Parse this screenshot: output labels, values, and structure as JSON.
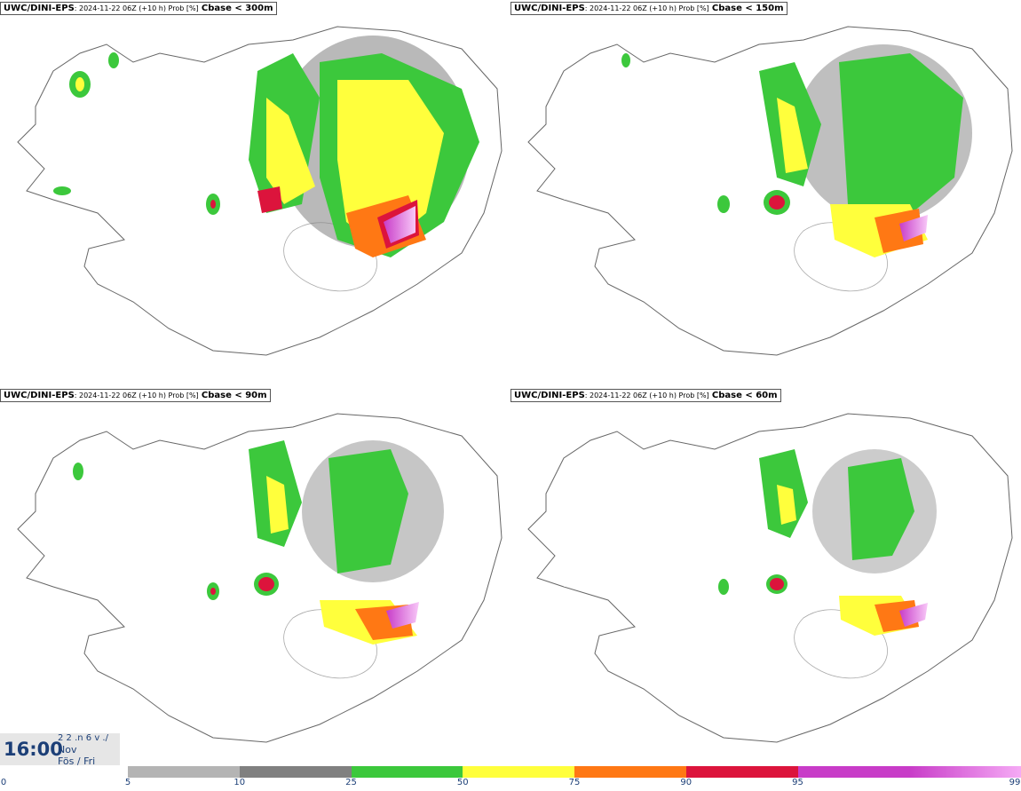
{
  "panels": [
    {
      "model": "UWC/DINI-EPS",
      "meta": ": 2024-11-22 06Z (+10 h) Prob [%]",
      "param": "Cbase < 300m"
    },
    {
      "model": "UWC/DINI-EPS",
      "meta": ": 2024-11-22 06Z (+10 h) Prob [%]",
      "param": "Cbase < 150m"
    },
    {
      "model": "UWC/DINI-EPS",
      "meta": ": 2024-11-22 06Z (+10 h) Prob [%]",
      "param": "Cbase < 90m"
    },
    {
      "model": "UWC/DINI-EPS",
      "meta": ": 2024-11-22 06Z (+10 h) Prob [%]",
      "param": "Cbase < 60m"
    }
  ],
  "valid_time": {
    "time": "16:00",
    "line1": "2 2 .n 6 v ./",
    "line2": "Nov",
    "line3": "Fös / Fri"
  },
  "colorbar": {
    "ticks": [
      "0",
      "5",
      "10",
      "25",
      "50",
      "75",
      "90",
      "95",
      "99"
    ],
    "colors": [
      "#b4b4b4",
      "#808080",
      "#3cc83c",
      "#ffff3c",
      "#ff7814",
      "#dc143c",
      "#c83cc8",
      "#f5aaf5"
    ]
  }
}
